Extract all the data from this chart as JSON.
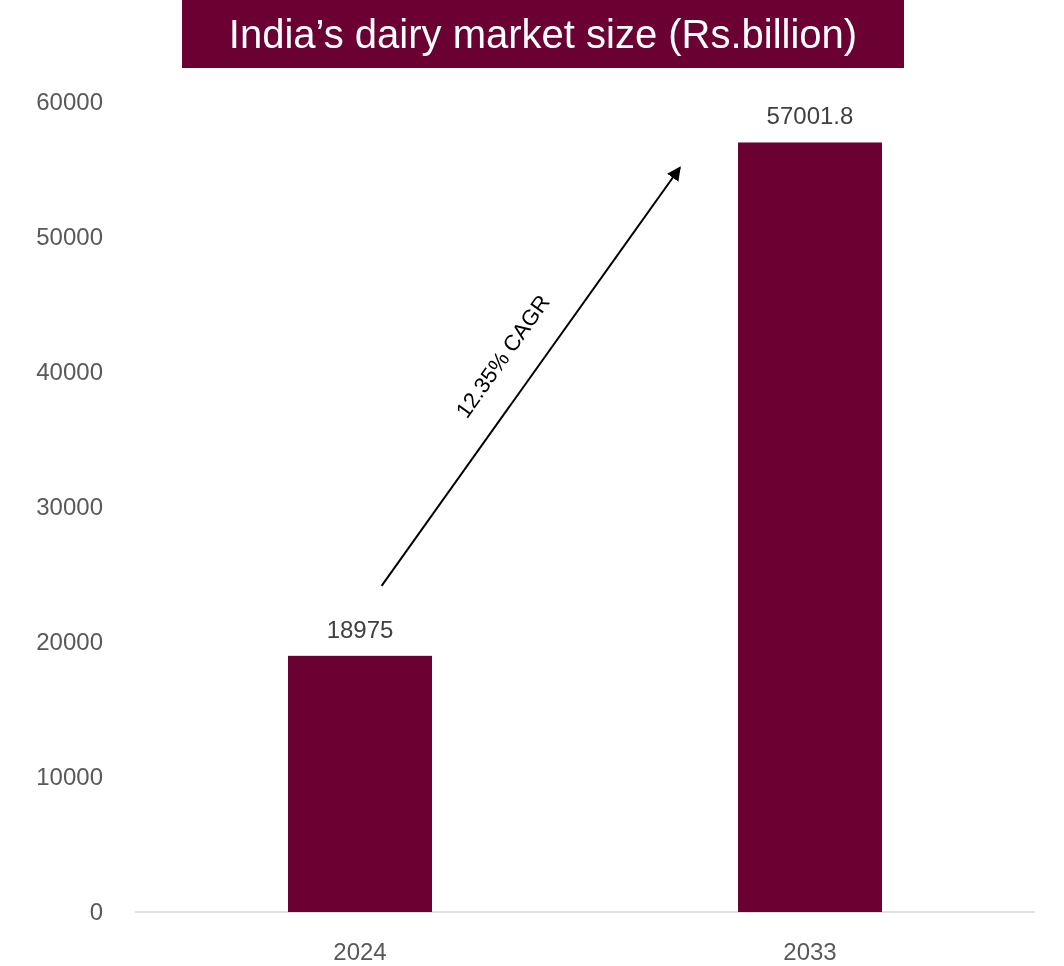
{
  "chart_data": {
    "type": "bar",
    "title": "India’s dairy market size (Rs.billion)",
    "categories": [
      "2024",
      "2033"
    ],
    "values": [
      18975,
      57001.8
    ],
    "color": "#6b0032",
    "ylim": [
      0,
      60000
    ],
    "yticks": [
      0,
      10000,
      20000,
      30000,
      40000,
      50000,
      60000
    ],
    "grid": false,
    "data_labels": true,
    "annotations": [
      "12.35% CAGR"
    ]
  }
}
